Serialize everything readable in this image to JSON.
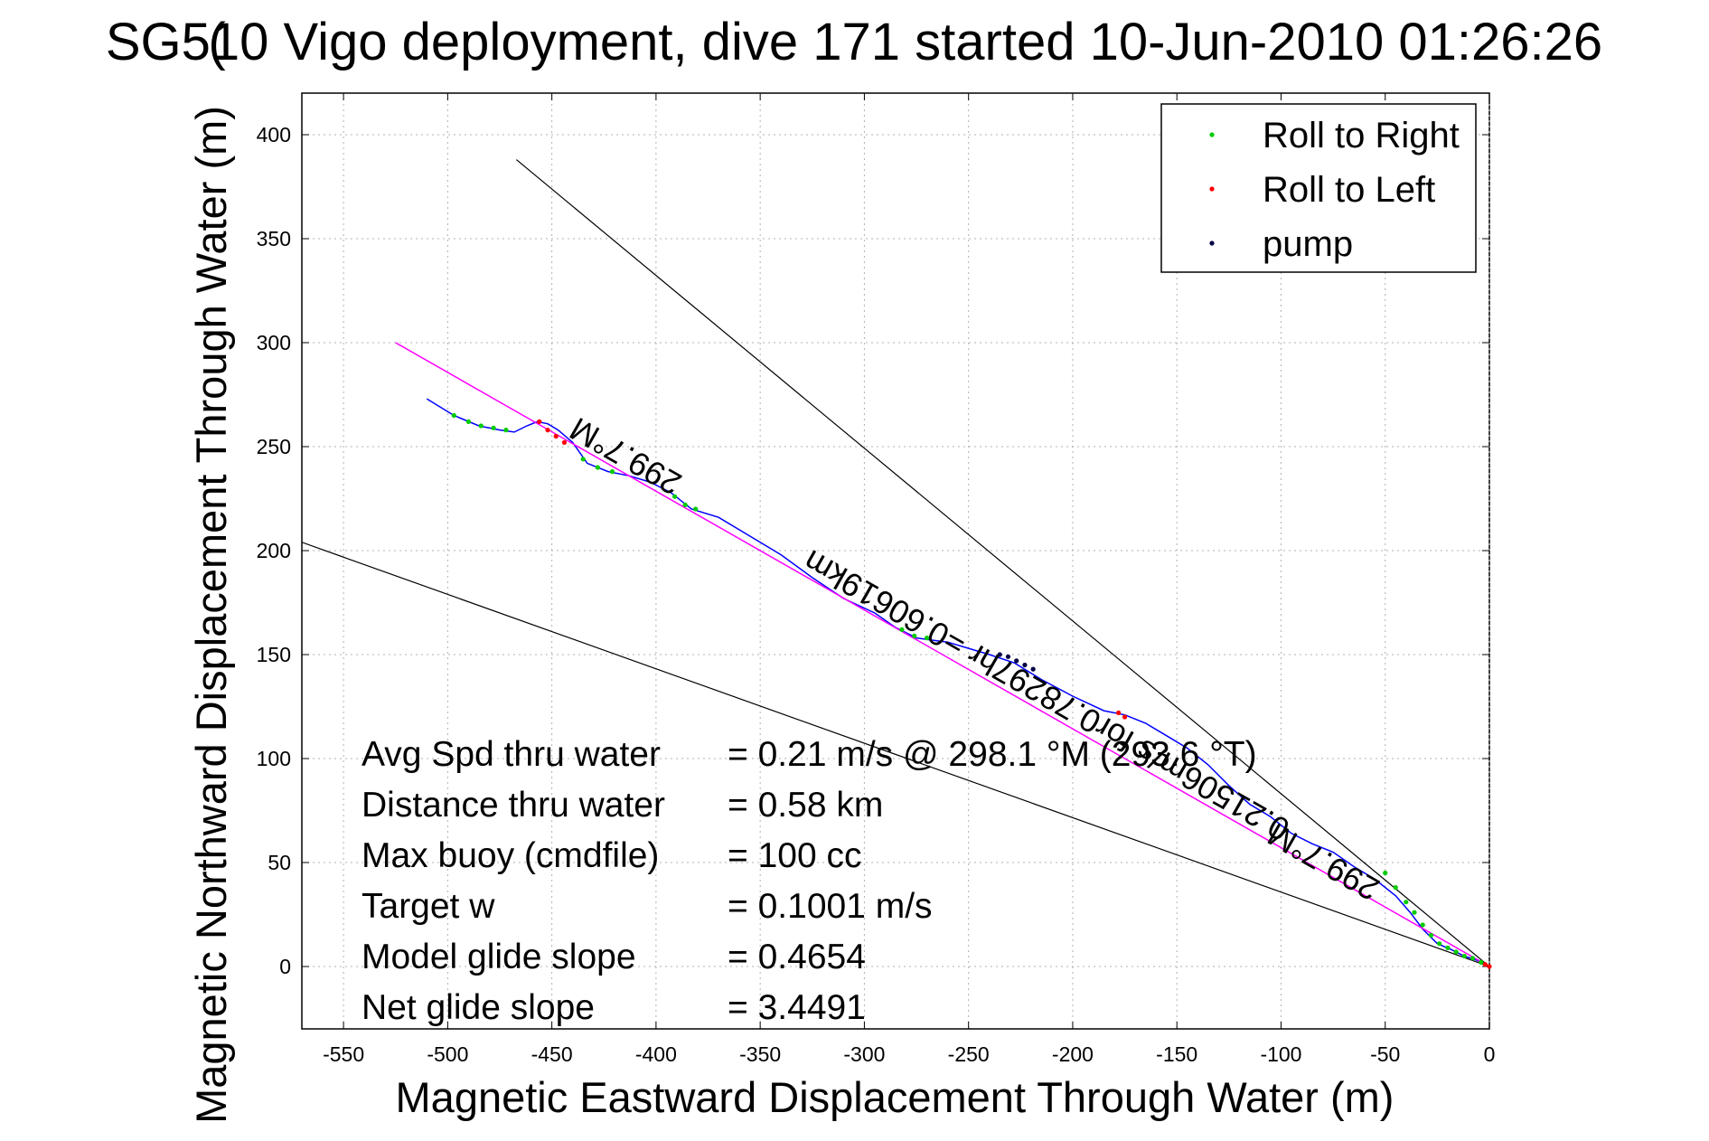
{
  "colors": {
    "track": "#0000ff",
    "heading_line": "#ff00ff",
    "roll_right": "#00cc00",
    "roll_left": "#ff0000",
    "pump": "#000044",
    "guide": "#000000"
  },
  "chart_data": {
    "type": "line",
    "title": "SG510 Vigo deployment, dive 171 started 10-Jun-2010 01:26:26",
    "title_overlay": "(",
    "xlabel": "Magnetic Eastward Displacement Through Water (m)",
    "ylabel": "Magnetic Northward Displacement Through Water (m)",
    "xlim": [
      -570,
      0
    ],
    "ylim": [
      -30,
      420
    ],
    "xticks": [
      -550,
      -500,
      -450,
      -400,
      -350,
      -300,
      -250,
      -200,
      -150,
      -100,
      -50,
      0
    ],
    "yticks": [
      0,
      50,
      100,
      150,
      200,
      250,
      300,
      350,
      400
    ],
    "grid": true,
    "legend": {
      "placement": "top-right",
      "entries": [
        {
          "label": "Roll to Right",
          "color": "#00cc00"
        },
        {
          "label": "Roll to Left",
          "color": "#ff0000"
        },
        {
          "label": "pump",
          "color": "#000044"
        }
      ]
    },
    "series": [
      {
        "role": "track",
        "x": [
          -510,
          -497,
          -485,
          -475,
          -468,
          -462,
          -457,
          -452,
          -447,
          -440,
          -433,
          -423,
          -413,
          -403,
          -393,
          -383,
          -370,
          -355,
          -340,
          -325,
          -310,
          -295,
          -285,
          -275,
          -268,
          -260,
          -250,
          -240,
          -228,
          -215,
          -200,
          -185,
          -175,
          -165,
          -155,
          -145,
          -135,
          -125,
          -115,
          -105,
          -95,
          -85,
          -75,
          -65,
          -55,
          -45,
          -38,
          -32,
          -25,
          -18,
          -12,
          -6,
          0
        ],
        "y": [
          273,
          265,
          260,
          258,
          257,
          260,
          262,
          261,
          258,
          252,
          242,
          238,
          236,
          233,
          228,
          220,
          216,
          207,
          198,
          187,
          177,
          170,
          163,
          158,
          157,
          156,
          153,
          150,
          146,
          138,
          130,
          123,
          121,
          117,
          111,
          105,
          97,
          87,
          78,
          72,
          64,
          59,
          55,
          48,
          42,
          34,
          26,
          18,
          11,
          8,
          5,
          3,
          0
        ]
      },
      {
        "role": "heading_line",
        "x": [
          -525,
          0
        ],
        "y": [
          300,
          0
        ]
      },
      {
        "role": "guide",
        "x": [
          -467,
          0
        ],
        "y": [
          388,
          0
        ]
      },
      {
        "role": "guide",
        "x": [
          -570,
          0
        ],
        "y": [
          204,
          0
        ]
      }
    ],
    "markers": [
      {
        "kind": "roll_right",
        "x": [
          -497,
          -490,
          -484,
          -478,
          -472
        ],
        "y": [
          265,
          262,
          260,
          259,
          258
        ]
      },
      {
        "kind": "roll_right",
        "x": [
          -435,
          -428,
          -421
        ],
        "y": [
          244,
          240,
          238
        ]
      },
      {
        "kind": "roll_right",
        "x": [
          -391,
          -386,
          -381
        ],
        "y": [
          226,
          222,
          220
        ]
      },
      {
        "kind": "roll_right",
        "x": [
          -282,
          -276,
          -270
        ],
        "y": [
          162,
          159,
          158
        ]
      },
      {
        "kind": "roll_right",
        "x": [
          -50,
          -45,
          -40,
          -36,
          -32,
          -28,
          -24,
          -20,
          -16,
          -12,
          -8,
          -4
        ],
        "y": [
          45,
          38,
          31,
          26,
          20,
          15,
          11,
          9,
          7,
          5,
          4,
          2
        ]
      },
      {
        "kind": "roll_left",
        "x": [
          -456,
          -452,
          -448,
          -444
        ],
        "y": [
          262,
          258,
          255,
          252
        ]
      },
      {
        "kind": "roll_left",
        "x": [
          -178,
          -175
        ],
        "y": [
          122,
          120
        ]
      },
      {
        "kind": "roll_left",
        "x": [
          -2,
          0
        ],
        "y": [
          1,
          0
        ]
      },
      {
        "kind": "pump",
        "x": [
          -235,
          -231,
          -227,
          -223,
          -219
        ],
        "y": [
          150,
          149,
          147,
          145,
          143
        ]
      }
    ],
    "annotations": [
      {
        "text": "299.7°M",
        "x": -412,
        "y": 250
      },
      {
        "text": "0.21506m/s for0.78297hr =0.60619km",
        "x": -210,
        "y": 135
      },
      {
        "text": "299.7°M",
        "x": -77,
        "y": 55
      }
    ],
    "stats": [
      {
        "label": "Avg Spd thru water",
        "value": "=  0.21 m/s @ 298.1 °M (293.6 °T)"
      },
      {
        "label": "Distance thru water",
        "value": "=  0.58 km"
      },
      {
        "label": "Max buoy (cmdfile)",
        "value": "= 100 cc"
      },
      {
        "label": "Target w",
        "value": "= 0.1001 m/s"
      },
      {
        "label": "Model glide slope",
        "value": "= 0.4654"
      },
      {
        "label": "Net glide slope",
        "value": "= 3.4491"
      }
    ]
  }
}
